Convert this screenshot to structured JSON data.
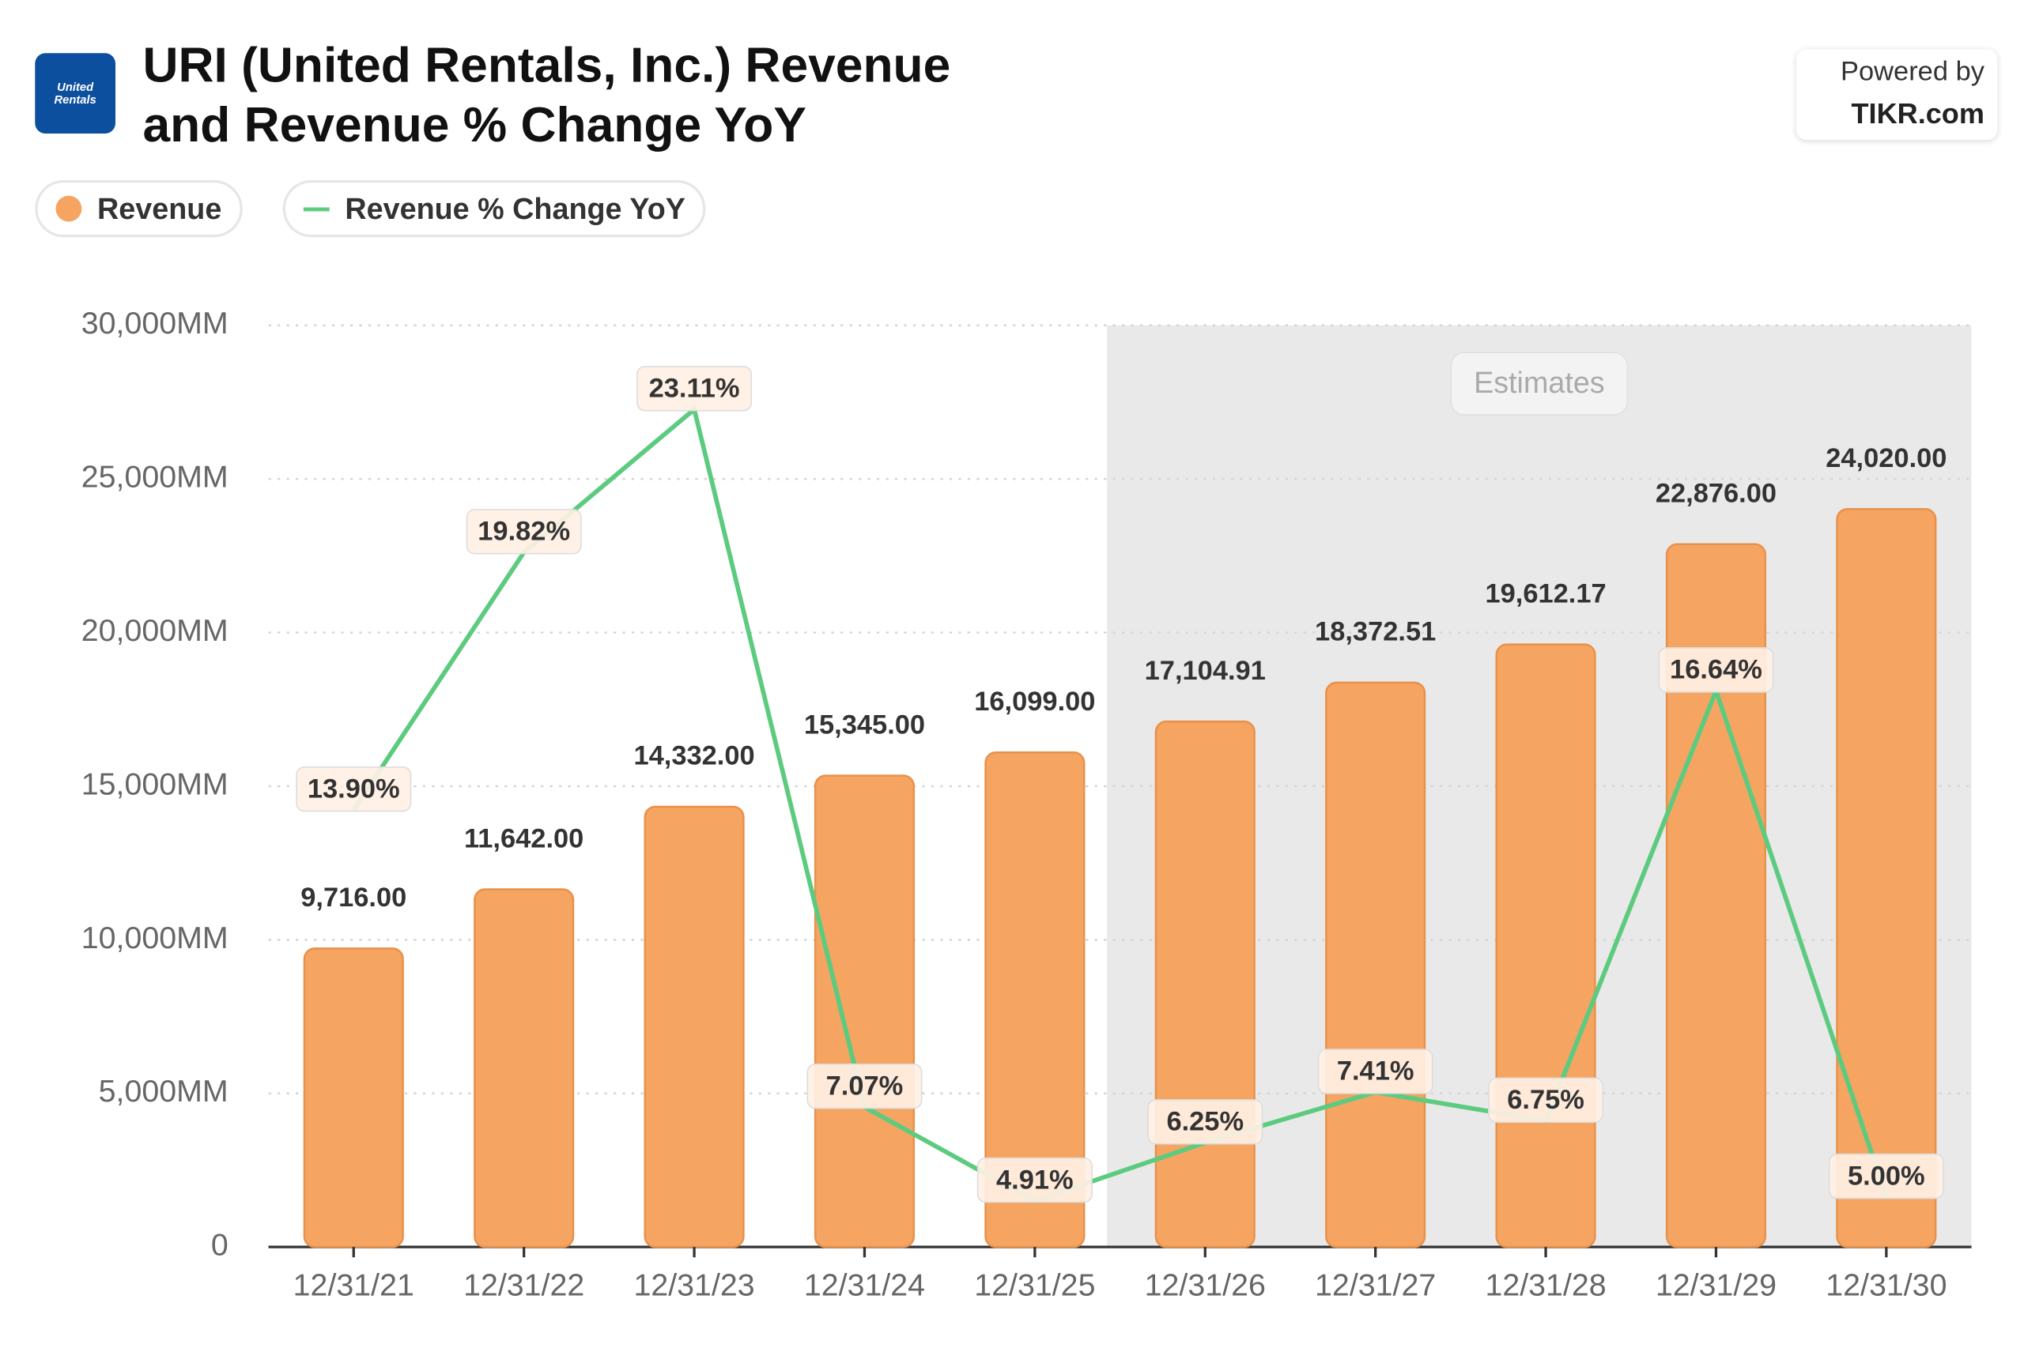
{
  "header": {
    "logo": "United Rentals",
    "powered_by": "Powered by",
    "brand": "TIKR.com"
  },
  "chart_data": {
    "type": "bar_line",
    "title": "URI (United Rentals, Inc.) Revenue and Revenue % Change YoY",
    "categories": [
      "12/31/21",
      "12/31/22",
      "12/31/23",
      "12/31/24",
      "12/31/25",
      "12/31/26",
      "12/31/27",
      "12/31/28",
      "12/31/29",
      "12/31/30"
    ],
    "estimates": {
      "label": "Estimates",
      "from": "12/31/26"
    },
    "series": [
      {
        "name": "Revenue",
        "type": "bar",
        "color": "#f5a462",
        "values": [
          9716,
          11642,
          14332,
          15345,
          16099,
          17104.91,
          18372.51,
          19612.17,
          22876,
          24020
        ],
        "value_labels": [
          "9,716.00",
          "11,642.00",
          "14,332.00",
          "15,345.00",
          "16,099.00",
          "17,104.91",
          "18,372.51",
          "19,612.17",
          "22,876.00",
          "24,020.00"
        ]
      },
      {
        "name": "Revenue % Change YoY",
        "type": "line",
        "axis": "y2",
        "color": "#5ccb7f",
        "values": [
          13.9,
          19.82,
          23.11,
          7.07,
          4.91,
          6.25,
          7.41,
          6.75,
          16.64,
          5.0
        ],
        "value_labels": [
          "13.90%",
          "19.82%",
          "23.11%",
          "7.07%",
          "4.91%",
          "6.25%",
          "7.41%",
          "6.75%",
          "16.64%",
          "5.00%"
        ]
      }
    ],
    "ylim": [
      0,
      30000
    ],
    "yticks": [
      0,
      {
        "value": 5000,
        "label": "5,000MM"
      },
      {
        "value": 10000,
        "label": "10,000MM"
      },
      {
        "value": 15000,
        "label": "15,000MM"
      },
      {
        "value": 20000,
        "label": "20,000MM"
      },
      {
        "value": 25000,
        "label": "25,000MM"
      },
      {
        "value": 30000,
        "label": "30,000MM"
      }
    ],
    "y2lim": [
      3.85,
      25.04
    ],
    "grid": true
  }
}
